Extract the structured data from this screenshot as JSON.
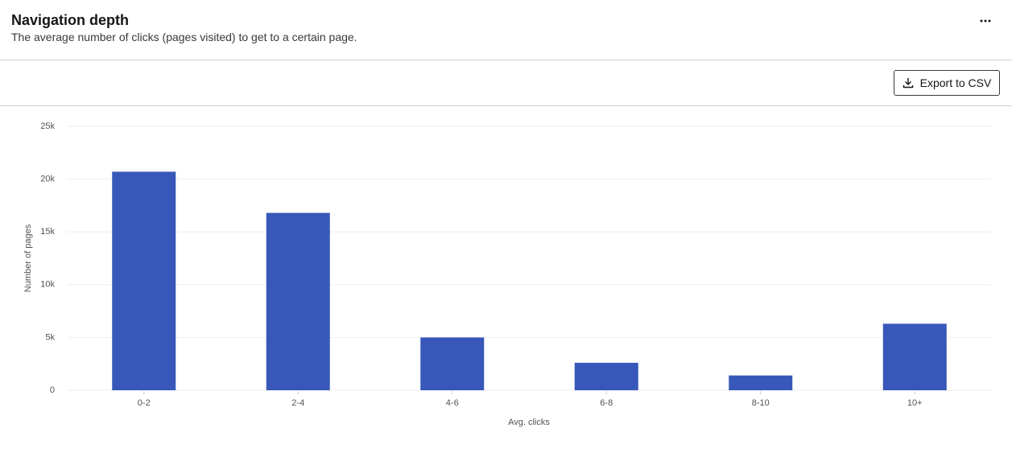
{
  "header": {
    "title": "Navigation depth",
    "subtitle": "The average number of clicks (pages visited) to get to a certain page."
  },
  "toolbar": {
    "export_button": "Export to CSV"
  },
  "chart_data": {
    "type": "bar",
    "x_label": "Avg. clicks",
    "y_label": "Number of pages",
    "categories": [
      "0-2",
      "2-4",
      "4-6",
      "6-8",
      "8-10",
      "10+"
    ],
    "values": [
      20700,
      16800,
      5000,
      2600,
      1400,
      6300
    ],
    "color": "#3758b9",
    "ylim": [
      0,
      25000
    ],
    "yticks": [
      0,
      {
        "value": 5000,
        "label": "5k"
      },
      {
        "value": 10000,
        "label": "10k"
      },
      {
        "value": 15000,
        "label": "15k"
      },
      {
        "value": 20000,
        "label": "20k"
      },
      {
        "value": 25000,
        "label": "25k"
      }
    ],
    "grid": true
  }
}
